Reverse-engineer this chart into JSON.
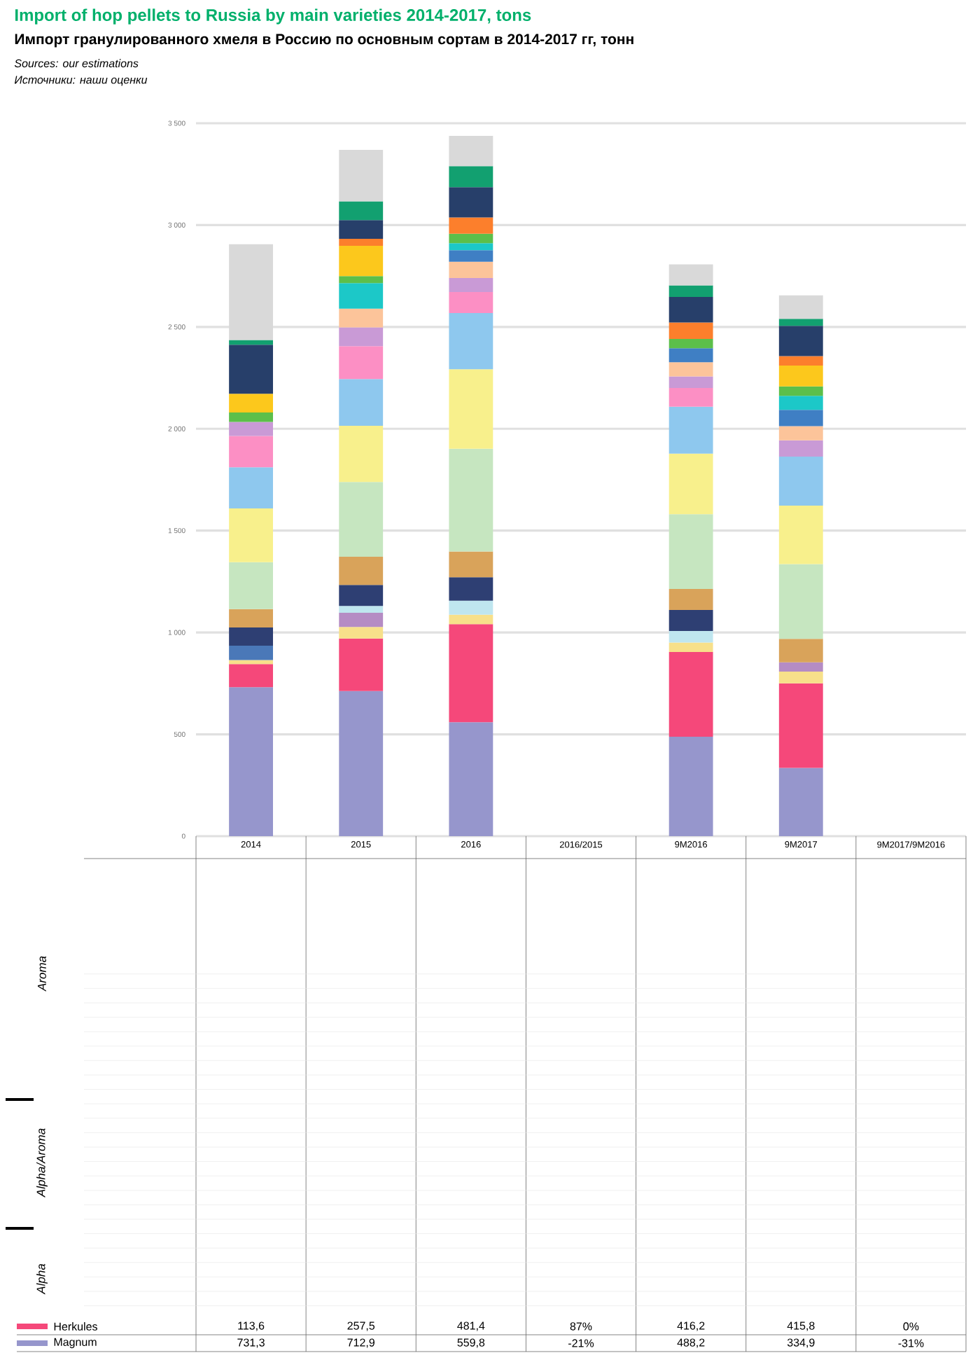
{
  "chart_data": {
    "type": "bar",
    "stacked": true,
    "grid": "y",
    "legend": "bottom",
    "title": "Import of hop pellets to Russia by main varieties 2014-2017, tons",
    "subtitle": "Импорт гранулированного хмеля в Россию по основным сортам в 2014-2017 гг, тонн",
    "annotations": [
      "Sources: our estimations",
      "Источники: наши оценки",
      "Aroma",
      "Alpha/Aroma",
      "Alpha"
    ],
    "categories": [
      "2014",
      "2015",
      "2016",
      "2016/2015",
      "9M2016",
      "9M2017",
      "9M2017/9M2016"
    ],
    "ylim": [
      0,
      3500
    ],
    "yticks": [
      0,
      500,
      {
        "value": 1000,
        "label": "1 000"
      },
      {
        "value": 1500,
        "label": "1 500"
      },
      {
        "value": 2000,
        "label": "2 000"
      },
      {
        "value": 2500,
        "label": "2 500"
      },
      {
        "value": 3000,
        "label": "3 000"
      },
      {
        "value": 3500,
        "label": "3 500"
      }
    ],
    "series": [
      {
        "name": "Magnum",
        "color": "#9696cc",
        "values": [
          731.3,
          712.9,
          559.8,
          null,
          488.2,
          334.9,
          null
        ],
        "value_labels": [
          "731,3",
          "712,9",
          "559,8",
          "-21%",
          "488,2",
          "334,9",
          "-31%"
        ]
      },
      {
        "name": "Herkules",
        "color": "#f5487a",
        "values": [
          113.6,
          257.5,
          481.4,
          null,
          416.2,
          415.8,
          null
        ],
        "value_labels": [
          "113,6",
          "257,5",
          "481,4",
          "87%",
          "416,2",
          "415,8",
          "0%"
        ]
      },
      {
        "color": "#f7e08a",
        "values": [
          20,
          57,
          46,
          null,
          46,
          57,
          null
        ]
      },
      {
        "color": "#b58cc4",
        "values": [
          null,
          69,
          null,
          null,
          null,
          46,
          null
        ]
      },
      {
        "color": "#bfe6ef",
        "values": [
          null,
          34,
          69,
          null,
          57,
          null,
          null
        ]
      },
      {
        "color": "#4a78b8",
        "values": [
          70,
          null,
          null,
          null,
          null,
          null,
          null
        ]
      },
      {
        "color": "#2e3f73",
        "values": [
          90,
          103,
          115,
          null,
          103,
          null,
          null
        ]
      },
      {
        "color": "#d9a35a",
        "values": [
          90,
          138,
          126,
          null,
          103,
          115,
          null
        ]
      },
      {
        "color": "#c6e6c0",
        "values": [
          230,
          367,
          505,
          null,
          367,
          367,
          null
        ]
      },
      {
        "color": "#f8f08c",
        "values": [
          264,
          276,
          390,
          null,
          298,
          287,
          null
        ]
      },
      {
        "color": "#8ec8ee",
        "values": [
          202,
          230,
          276,
          null,
          230,
          241,
          null
        ]
      },
      {
        "color": "#fc8fc4",
        "values": [
          154,
          161,
          103,
          null,
          92,
          null,
          null
        ]
      },
      {
        "color": "#c99ad6",
        "values": [
          69,
          92,
          69,
          null,
          57,
          80,
          null
        ]
      },
      {
        "color": "#fcc49a",
        "values": [
          null,
          92,
          80,
          null,
          69,
          69,
          null
        ]
      },
      {
        "color": "#3f7fc4",
        "values": [
          null,
          null,
          57,
          null,
          69,
          80,
          null
        ]
      },
      {
        "color": "#1cc8c8",
        "values": [
          null,
          126,
          34,
          null,
          null,
          69,
          null
        ]
      },
      {
        "color": "#5cbf4a",
        "values": [
          46,
          34,
          46,
          null,
          46,
          46,
          null
        ]
      },
      {
        "color": "#fcc81c",
        "values": [
          92,
          149,
          null,
          null,
          null,
          103,
          null
        ]
      },
      {
        "color": "#fc7f2c",
        "values": [
          null,
          34,
          80,
          null,
          80,
          46,
          null
        ]
      },
      {
        "color": "#273f6a",
        "values": [
          241,
          92,
          149,
          null,
          126,
          149,
          null
        ]
      },
      {
        "color": "#12a070",
        "values": [
          23,
          92,
          103,
          null,
          57,
          34,
          null
        ]
      },
      {
        "color": "#d9d9d9",
        "values": [
          470,
          253,
          149,
          null,
          103,
          115,
          null
        ]
      }
    ]
  }
}
